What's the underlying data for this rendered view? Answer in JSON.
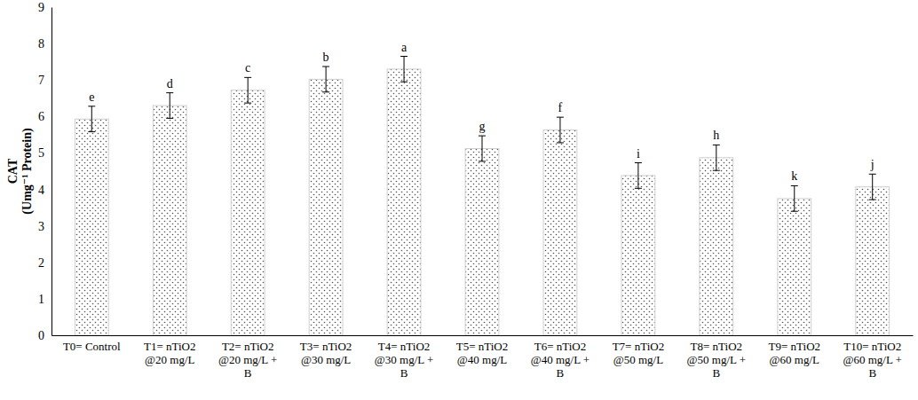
{
  "chart_data": {
    "type": "bar",
    "y_label": [
      "CAT",
      "(Umg⁻¹ Protein)"
    ],
    "categories": [
      "T0= Control",
      "T1= nTiO2 @20 mg/L",
      "T2= nTiO2 @20 mg/L + B",
      "T3= nTiO2 @30 mg/L",
      "T4= nTiO2 @30 mg/L + B",
      "T5= nTiO2 @40 mg/L",
      "T6= nTiO2 @40 mg/L + B",
      "T7= nTiO2 @50 mg/L",
      "T8= nTiO2 @50 mg/L + B",
      "T9= nTiO2 @60 mg/L",
      "T10= nTiO2 @60 mg/L + B"
    ],
    "values": [
      5.93,
      6.3,
      6.72,
      7.02,
      7.3,
      5.12,
      5.63,
      4.38,
      4.87,
      3.75,
      4.07
    ],
    "errors": [
      0.35,
      0.35,
      0.35,
      0.35,
      0.35,
      0.35,
      0.35,
      0.35,
      0.35,
      0.35,
      0.35
    ],
    "letters": [
      "e",
      "d",
      "c",
      "b",
      "a",
      "g",
      "f",
      "i",
      "h",
      "k",
      "j"
    ],
    "ylim": [
      0,
      9
    ],
    "yticks": [
      0,
      1,
      2,
      3,
      4,
      5,
      6,
      7,
      8,
      9
    ],
    "grid": false
  }
}
